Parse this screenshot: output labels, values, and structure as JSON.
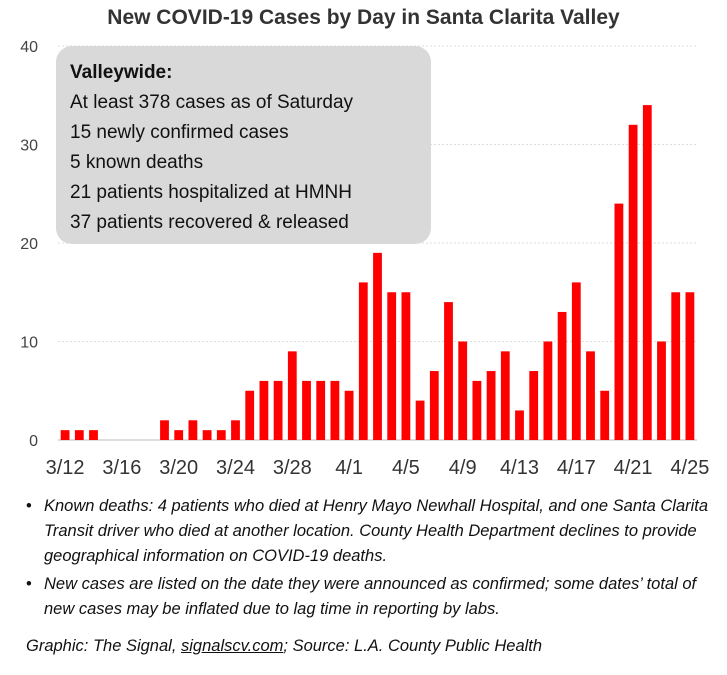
{
  "chart_data": {
    "type": "bar",
    "title": "New COVID-19 Cases by Day in Santa Clarita Valley",
    "xlabel": "",
    "ylabel": "",
    "ylim": [
      0,
      40
    ],
    "yticks": [
      0,
      10,
      20,
      30,
      40
    ],
    "grid": true,
    "bar_color": "#ff0000",
    "categories": [
      "3/12",
      "3/13",
      "3/14",
      "3/15",
      "3/16",
      "3/17",
      "3/18",
      "3/19",
      "3/20",
      "3/21",
      "3/22",
      "3/23",
      "3/24",
      "3/25",
      "3/26",
      "3/27",
      "3/28",
      "3/29",
      "3/30",
      "3/31",
      "4/1",
      "4/2",
      "4/3",
      "4/4",
      "4/5",
      "4/6",
      "4/7",
      "4/8",
      "4/9",
      "4/10",
      "4/11",
      "4/12",
      "4/13",
      "4/14",
      "4/15",
      "4/16",
      "4/17",
      "4/18",
      "4/19",
      "4/20",
      "4/21",
      "4/22",
      "4/23",
      "4/24",
      "4/25"
    ],
    "values": [
      1,
      1,
      1,
      0,
      0,
      0,
      0,
      2,
      1,
      2,
      1,
      1,
      2,
      5,
      6,
      6,
      9,
      6,
      6,
      6,
      5,
      16,
      19,
      15,
      15,
      4,
      7,
      14,
      10,
      6,
      7,
      9,
      3,
      7,
      10,
      13,
      16,
      9,
      5,
      24,
      32,
      34,
      10,
      15,
      15
    ],
    "xtick_labels": [
      "3/12",
      "3/16",
      "3/20",
      "3/24",
      "3/28",
      "4/1",
      "4/5",
      "4/9",
      "4/13",
      "4/17",
      "4/21",
      "4/25"
    ]
  },
  "info_box": {
    "heading": "Valleywide:",
    "lines": [
      "At least 378 cases as of Saturday",
      "15 newly confirmed cases",
      "5 known deaths",
      "21 patients hospitalized at HMNH",
      "37 patients recovered & released"
    ]
  },
  "notes": [
    "Known deaths: 4 patients who died at Henry Mayo Newhall Hospital, and one Santa Clarita Transit driver who died at another location. County Health Department declines to provide geographical information on COVID-19 deaths.",
    "New cases are listed on the date they were announced as confirmed; some dates’ total of new cases may be inflated due to lag time in reporting by labs."
  ],
  "credit": {
    "prefix": "Graphic: The Signal, ",
    "link": "signalscv.com",
    "suffix": "; Source: L.A. County Public Health"
  }
}
